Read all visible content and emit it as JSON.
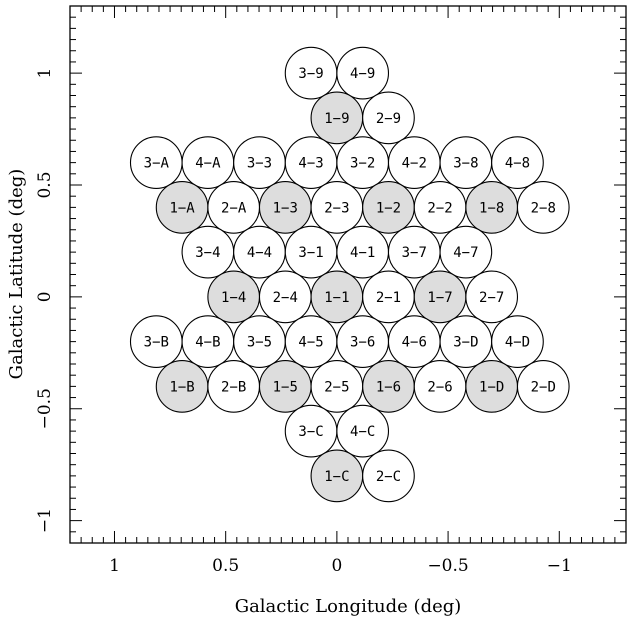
{
  "chart_data": {
    "type": "scatter",
    "title": "",
    "xlabel": "Galactic Longitude (deg)",
    "ylabel": "Galactic Latitude (deg)",
    "xlim": [
      1.2,
      -1.3
    ],
    "ylim": [
      -1.1,
      1.3
    ],
    "x_ticks": [
      1,
      0.5,
      0,
      -0.5,
      -1
    ],
    "x_tick_labels": [
      "1",
      "0.5",
      "0",
      "−0.5",
      "−1"
    ],
    "y_ticks": [
      -1,
      -0.5,
      0,
      0.5,
      1
    ],
    "y_tick_labels": [
      "−1",
      "−0.5",
      "0",
      "0.5",
      "1"
    ],
    "grid": false,
    "field_radius_deg": 0.116,
    "colors": {
      "shaded": "#dddddd",
      "unshaded": "#ffffff",
      "stroke": "#000000"
    },
    "fields": [
      {
        "label": "3−9",
        "l": 0.116,
        "b": 1.0,
        "shaded": false
      },
      {
        "label": "4−9",
        "l": -0.116,
        "b": 1.0,
        "shaded": false
      },
      {
        "label": "1−9",
        "l": 0.0,
        "b": 0.8,
        "shaded": true
      },
      {
        "label": "2−9",
        "l": -0.232,
        "b": 0.8,
        "shaded": false
      },
      {
        "label": "3−A",
        "l": 0.812,
        "b": 0.6,
        "shaded": false
      },
      {
        "label": "4−A",
        "l": 0.58,
        "b": 0.6,
        "shaded": false
      },
      {
        "label": "3−3",
        "l": 0.348,
        "b": 0.6,
        "shaded": false
      },
      {
        "label": "4−3",
        "l": 0.116,
        "b": 0.6,
        "shaded": false
      },
      {
        "label": "3−2",
        "l": -0.116,
        "b": 0.6,
        "shaded": false
      },
      {
        "label": "4−2",
        "l": -0.348,
        "b": 0.6,
        "shaded": false
      },
      {
        "label": "3−8",
        "l": -0.58,
        "b": 0.6,
        "shaded": false
      },
      {
        "label": "4−8",
        "l": -0.812,
        "b": 0.6,
        "shaded": false
      },
      {
        "label": "1−A",
        "l": 0.696,
        "b": 0.4,
        "shaded": true
      },
      {
        "label": "2−A",
        "l": 0.464,
        "b": 0.4,
        "shaded": false
      },
      {
        "label": "1−3",
        "l": 0.232,
        "b": 0.4,
        "shaded": true
      },
      {
        "label": "2−3",
        "l": 0.0,
        "b": 0.4,
        "shaded": false
      },
      {
        "label": "1−2",
        "l": -0.232,
        "b": 0.4,
        "shaded": true
      },
      {
        "label": "2−2",
        "l": -0.464,
        "b": 0.4,
        "shaded": false
      },
      {
        "label": "1−8",
        "l": -0.696,
        "b": 0.4,
        "shaded": true
      },
      {
        "label": "2−8",
        "l": -0.928,
        "b": 0.4,
        "shaded": false
      },
      {
        "label": "3−4",
        "l": 0.58,
        "b": 0.2,
        "shaded": false
      },
      {
        "label": "4−4",
        "l": 0.348,
        "b": 0.2,
        "shaded": false
      },
      {
        "label": "3−1",
        "l": 0.116,
        "b": 0.2,
        "shaded": false
      },
      {
        "label": "4−1",
        "l": -0.116,
        "b": 0.2,
        "shaded": false
      },
      {
        "label": "3−7",
        "l": -0.348,
        "b": 0.2,
        "shaded": false
      },
      {
        "label": "4−7",
        "l": -0.58,
        "b": 0.2,
        "shaded": false
      },
      {
        "label": "1−4",
        "l": 0.464,
        "b": 0.0,
        "shaded": true
      },
      {
        "label": "2−4",
        "l": 0.232,
        "b": 0.0,
        "shaded": false
      },
      {
        "label": "1−1",
        "l": 0.0,
        "b": 0.0,
        "shaded": true
      },
      {
        "label": "2−1",
        "l": -0.232,
        "b": 0.0,
        "shaded": false
      },
      {
        "label": "1−7",
        "l": -0.464,
        "b": 0.0,
        "shaded": true
      },
      {
        "label": "2−7",
        "l": -0.696,
        "b": 0.0,
        "shaded": false
      },
      {
        "label": "3−B",
        "l": 0.812,
        "b": -0.2,
        "shaded": false
      },
      {
        "label": "4−B",
        "l": 0.58,
        "b": -0.2,
        "shaded": false
      },
      {
        "label": "3−5",
        "l": 0.348,
        "b": -0.2,
        "shaded": false
      },
      {
        "label": "4−5",
        "l": 0.116,
        "b": -0.2,
        "shaded": false
      },
      {
        "label": "3−6",
        "l": -0.116,
        "b": -0.2,
        "shaded": false
      },
      {
        "label": "4−6",
        "l": -0.348,
        "b": -0.2,
        "shaded": false
      },
      {
        "label": "3−D",
        "l": -0.58,
        "b": -0.2,
        "shaded": false
      },
      {
        "label": "4−D",
        "l": -0.812,
        "b": -0.2,
        "shaded": false
      },
      {
        "label": "1−B",
        "l": 0.696,
        "b": -0.4,
        "shaded": true
      },
      {
        "label": "2−B",
        "l": 0.464,
        "b": -0.4,
        "shaded": false
      },
      {
        "label": "1−5",
        "l": 0.232,
        "b": -0.4,
        "shaded": true
      },
      {
        "label": "2−5",
        "l": 0.0,
        "b": -0.4,
        "shaded": false
      },
      {
        "label": "1−6",
        "l": -0.232,
        "b": -0.4,
        "shaded": true
      },
      {
        "label": "2−6",
        "l": -0.464,
        "b": -0.4,
        "shaded": false
      },
      {
        "label": "1−D",
        "l": -0.696,
        "b": -0.4,
        "shaded": true
      },
      {
        "label": "2−D",
        "l": -0.928,
        "b": -0.4,
        "shaded": false
      },
      {
        "label": "3−C",
        "l": 0.116,
        "b": -0.6,
        "shaded": false
      },
      {
        "label": "4−C",
        "l": -0.116,
        "b": -0.6,
        "shaded": false
      },
      {
        "label": "1−C",
        "l": 0.0,
        "b": -0.8,
        "shaded": true
      },
      {
        "label": "2−C",
        "l": -0.232,
        "b": -0.8,
        "shaded": false
      }
    ]
  }
}
